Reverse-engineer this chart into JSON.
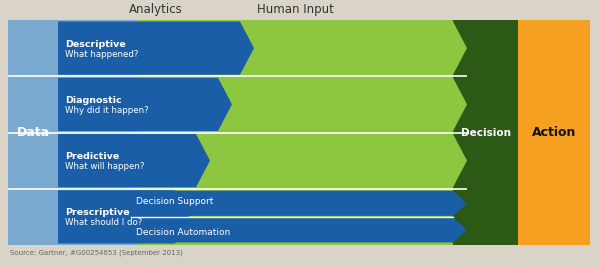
{
  "bg_color": "#d9d4c7",
  "title_analytics": "Analytics",
  "title_human_input": "Human Input",
  "source_text": "Source: Gartner, #G00254653 (September 2013)",
  "label_data": "Data",
  "label_decision": "Decision",
  "label_action": "Action",
  "rows": [
    {
      "line1": "Descriptive",
      "line2": "What happened?"
    },
    {
      "line1": "Diagnostic",
      "line2": "Why did it happen?"
    },
    {
      "line1": "Predictive",
      "line2": "What will happen?"
    },
    {
      "line1": "Prescriptive",
      "line2": "What should I do?"
    }
  ],
  "sub_labels": [
    "Decision Support",
    "Decision Automation"
  ],
  "color_light_blue": "#7aaad0",
  "color_dark_blue": "#1a5ea8",
  "color_green": "#8dc63f",
  "color_dark_green": "#2d5916",
  "color_orange": "#f5a020",
  "color_white": "#ffffff",
  "color_text_dark": "#333333",
  "color_source": "#666666"
}
